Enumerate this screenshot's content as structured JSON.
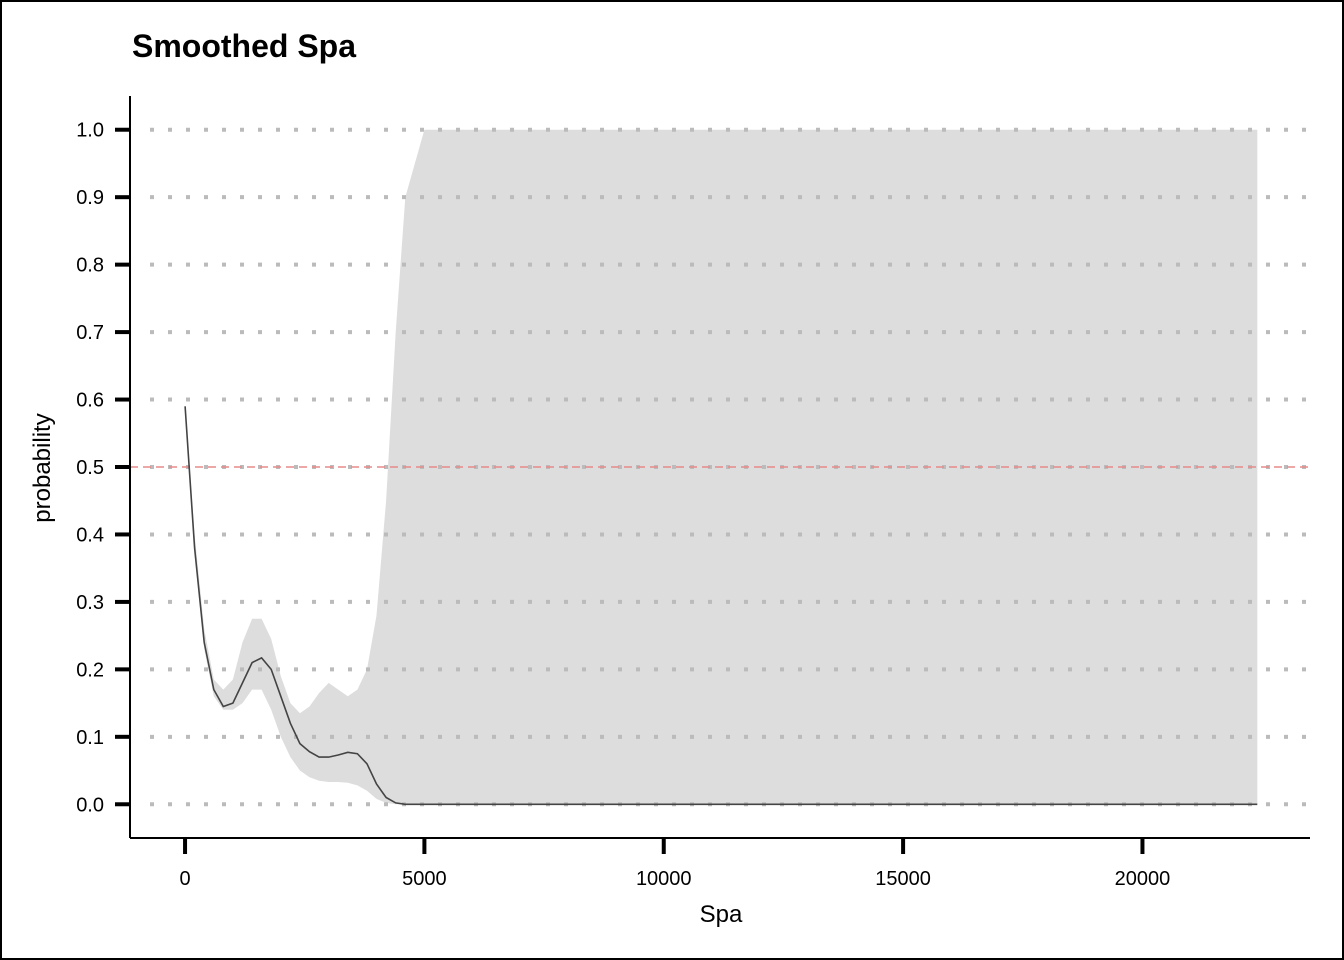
{
  "chart_data": {
    "type": "line",
    "title": "Smoothed Spa",
    "xlabel": "Spa",
    "ylabel": "probability",
    "xlim": [
      -1150,
      23500
    ],
    "ylim": [
      -0.05,
      1.05
    ],
    "x_ticks": [
      0,
      5000,
      10000,
      15000,
      20000
    ],
    "y_ticks": [
      0.0,
      0.1,
      0.2,
      0.3,
      0.4,
      0.5,
      0.6,
      0.7,
      0.8,
      0.9,
      1.0
    ],
    "y_tick_labels": [
      "0.0",
      "0.1",
      "0.2",
      "0.3",
      "0.4",
      "0.5",
      "0.6",
      "0.7",
      "0.8",
      "0.9",
      "1.0"
    ],
    "grid": "horizontal dotted",
    "reference_line": {
      "y": 0.5,
      "color": "#e88a8a",
      "style": "dashed"
    },
    "colors": {
      "line": "#444444",
      "band": "#dddddd",
      "grid": "#bbbbbb"
    },
    "series": [
      {
        "x": [
          0,
          200,
          400,
          600,
          800,
          1000,
          1200,
          1400,
          1600,
          1800,
          2000,
          2200,
          2400,
          2600,
          2800,
          3000,
          3200,
          3400,
          3600,
          3800,
          4000,
          4200,
          4400,
          4600,
          5000,
          6000,
          8000,
          10000,
          12000,
          14000,
          16000,
          18000,
          20000,
          22000,
          22400
        ],
        "y": [
          0.59,
          0.38,
          0.24,
          0.17,
          0.145,
          0.15,
          0.18,
          0.21,
          0.217,
          0.2,
          0.16,
          0.12,
          0.09,
          0.078,
          0.07,
          0.07,
          0.073,
          0.077,
          0.075,
          0.06,
          0.03,
          0.01,
          0.002,
          0.0,
          0.0,
          0.0,
          0.0,
          0.0,
          0.0,
          0.0,
          0.0,
          0.0,
          0.0,
          0.0,
          0.0
        ],
        "lower": [
          0.59,
          0.37,
          0.23,
          0.16,
          0.14,
          0.14,
          0.15,
          0.17,
          0.17,
          0.14,
          0.1,
          0.07,
          0.05,
          0.04,
          0.035,
          0.033,
          0.033,
          0.032,
          0.028,
          0.02,
          0.008,
          0.002,
          0.0,
          0.0,
          0.0,
          0.0,
          0.0,
          0.0,
          0.0,
          0.0,
          0.0,
          0.0,
          0.0,
          0.0,
          0.0
        ],
        "upper": [
          0.59,
          0.4,
          0.26,
          0.185,
          0.17,
          0.185,
          0.24,
          0.275,
          0.275,
          0.245,
          0.19,
          0.15,
          0.135,
          0.145,
          0.165,
          0.18,
          0.17,
          0.16,
          0.17,
          0.2,
          0.28,
          0.45,
          0.7,
          0.9,
          1.0,
          1.0,
          1.0,
          1.0,
          1.0,
          1.0,
          1.0,
          1.0,
          1.0,
          1.0,
          1.0
        ]
      }
    ]
  }
}
